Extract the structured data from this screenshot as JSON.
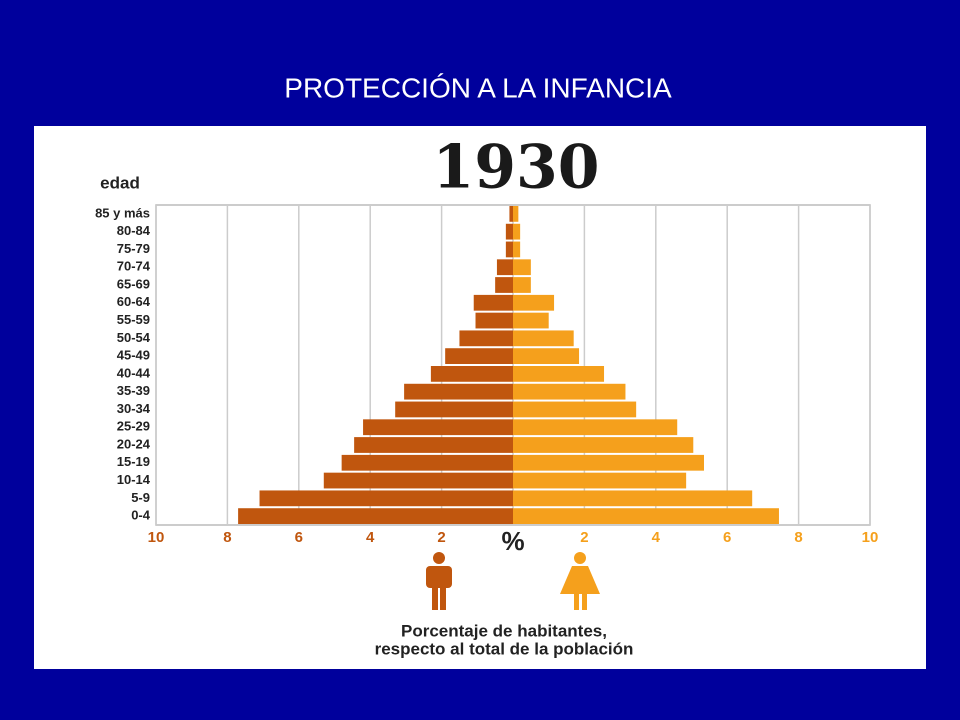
{
  "slide_title": "PROTECCIÓN A LA INFANCIA",
  "chart_data": {
    "type": "pyramid",
    "title": "1930",
    "ylabel": "edad",
    "xlabel": [
      "Porcentaje de habitantes,",
      "respecto al total de la población"
    ],
    "categories": [
      "85 y más",
      "80-84",
      "75-79",
      "70-74",
      "65-69",
      "60-64",
      "55-59",
      "50-54",
      "45-49",
      "40-44",
      "35-39",
      "30-34",
      "25-29",
      "20-24",
      "15-19",
      "10-14",
      "5-9",
      "0-4"
    ],
    "series": [
      {
        "color": "#c0560e",
        "values": [
          0.1,
          0.2,
          0.2,
          0.45,
          0.5,
          1.1,
          1.05,
          1.5,
          1.9,
          2.3,
          3.05,
          3.3,
          4.2,
          4.45,
          4.8,
          5.3,
          7.1,
          7.7
        ]
      },
      {
        "color": "#f5a01c",
        "values": [
          0.15,
          0.2,
          0.2,
          0.5,
          0.5,
          1.15,
          1.0,
          1.7,
          1.85,
          2.55,
          3.15,
          3.45,
          4.6,
          5.05,
          5.35,
          4.85,
          6.7,
          7.45
        ]
      }
    ],
    "xlim": [
      -10,
      10
    ],
    "xticks": [
      {
        "value": -10,
        "label": "10"
      },
      {
        "value": -8,
        "label": "8"
      },
      {
        "value": -6,
        "label": "6"
      },
      {
        "value": -4,
        "label": "4"
      },
      {
        "value": -2,
        "label": "2"
      },
      {
        "value": 0,
        "label": "%"
      },
      2,
      4,
      6,
      8,
      10
    ],
    "grid": true
  }
}
